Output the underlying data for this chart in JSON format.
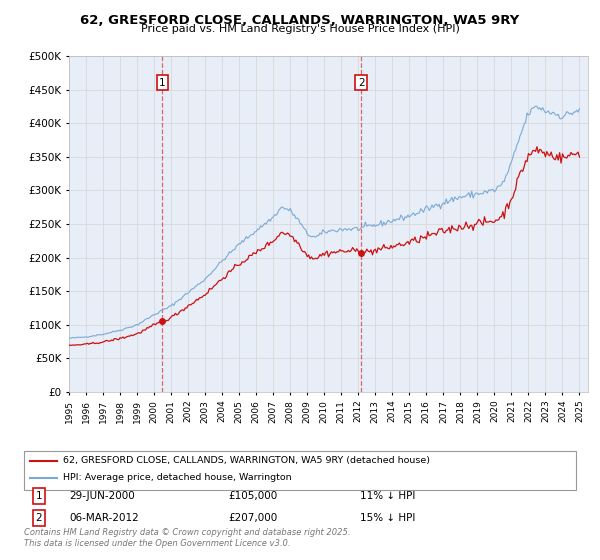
{
  "title1": "62, GRESFORD CLOSE, CALLANDS, WARRINGTON, WA5 9RY",
  "title2": "Price paid vs. HM Land Registry's House Price Index (HPI)",
  "legend_line1": "62, GRESFORD CLOSE, CALLANDS, WARRINGTON, WA5 9RY (detached house)",
  "legend_line2": "HPI: Average price, detached house, Warrington",
  "annotation1_date": "29-JUN-2000",
  "annotation1_price": "£105,000",
  "annotation1_note": "11% ↓ HPI",
  "annotation2_date": "06-MAR-2012",
  "annotation2_price": "£207,000",
  "annotation2_note": "15% ↓ HPI",
  "sale1_year": 2000.49,
  "sale1_price": 105000,
  "sale2_year": 2012.18,
  "sale2_price": 207000,
  "hpi_color": "#7aaad4",
  "price_color": "#cc1111",
  "annotation_box_color": "#cc1111",
  "background_color": "#e8eef8",
  "grid_color": "#d8d8d8",
  "ylim_min": 0,
  "ylim_max": 500000,
  "ytick_step": 50000,
  "footer": "Contains HM Land Registry data © Crown copyright and database right 2025.\nThis data is licensed under the Open Government Licence v3.0."
}
